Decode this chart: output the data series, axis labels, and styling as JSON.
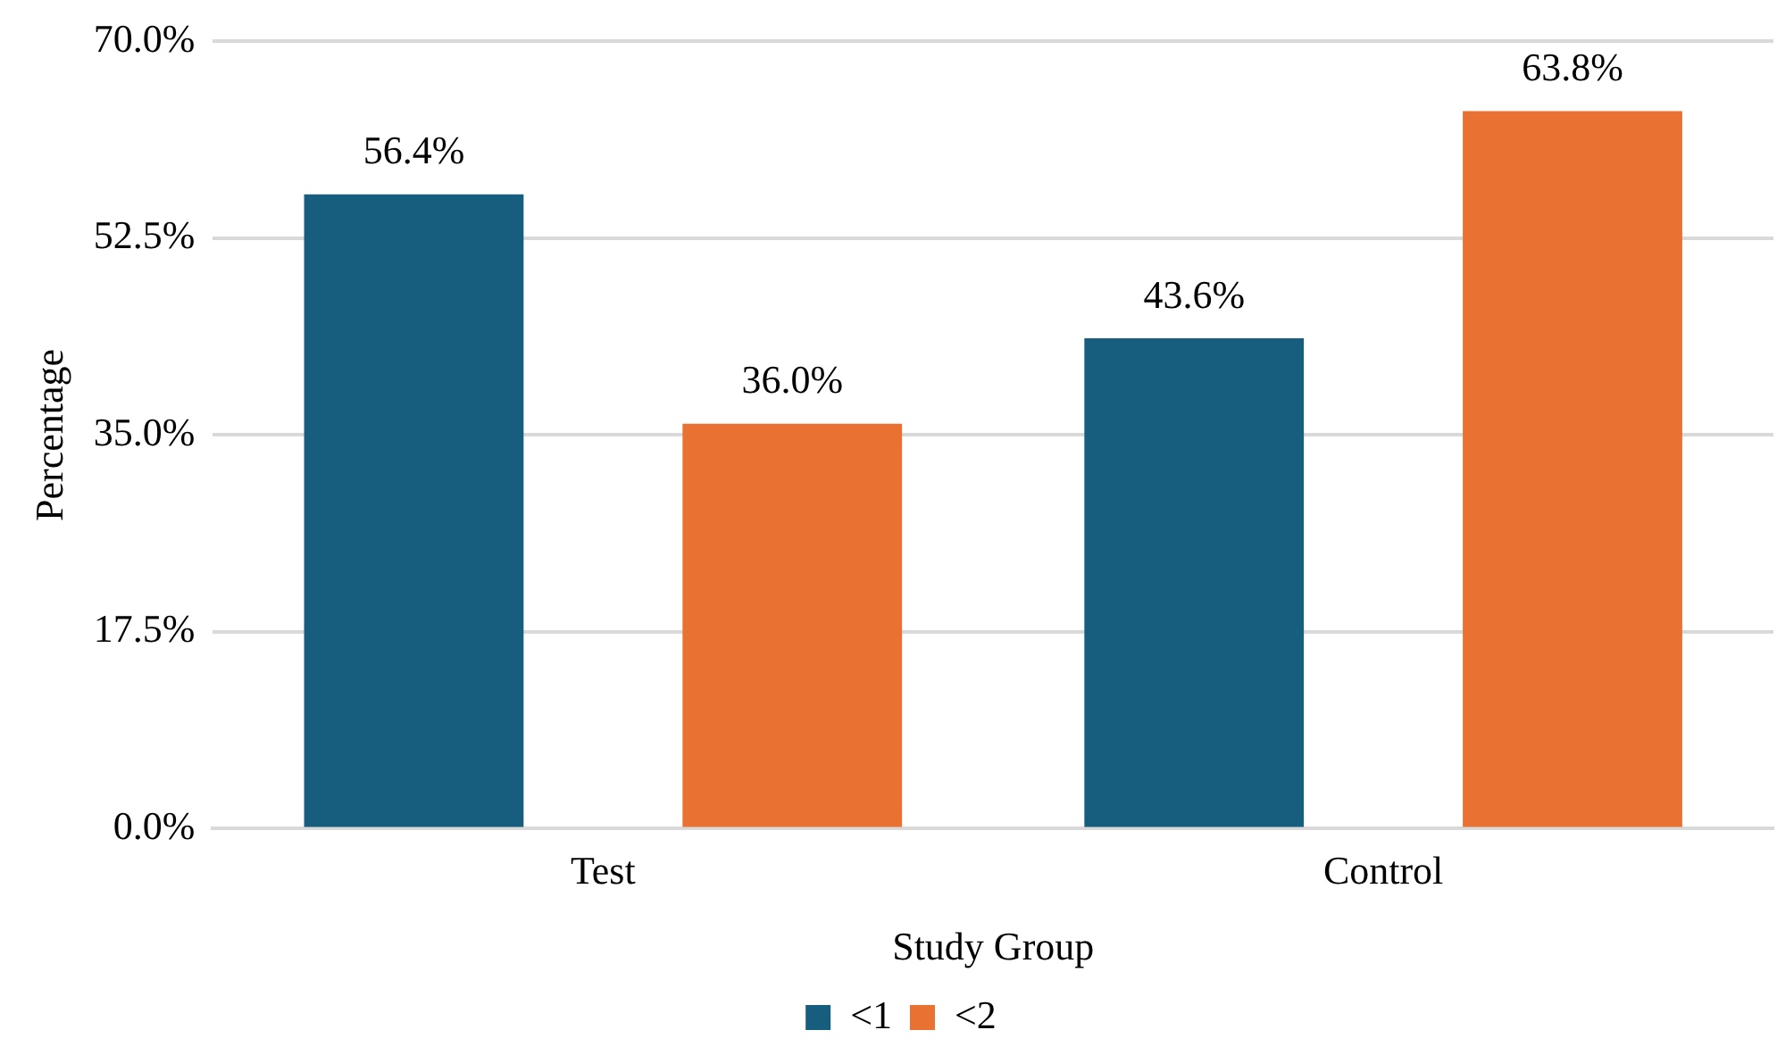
{
  "chart_data": {
    "type": "bar",
    "xlabel": "Study Group",
    "ylabel": "Percentage",
    "categories": [
      "Test",
      "Control"
    ],
    "series": [
      {
        "name": "<1",
        "color": "#175e7e",
        "values": [
          56.4,
          43.6
        ],
        "value_labels": [
          "56.4%",
          "43.6%"
        ]
      },
      {
        "name": "<2",
        "color": "#e97232",
        "values": [
          36.0,
          63.8
        ],
        "value_labels": [
          "36.0%",
          "63.8%"
        ]
      }
    ],
    "ylim": [
      0,
      70
    ],
    "yticks": [
      {
        "value": 0,
        "label": "0.0%"
      },
      {
        "value": 17.5,
        "label": "17.5%"
      },
      {
        "value": 35,
        "label": "35.0%"
      },
      {
        "value": 52.5,
        "label": "52.5%"
      },
      {
        "value": 70,
        "label": "70.0%"
      }
    ],
    "grid": "y",
    "legend": "bottom"
  }
}
